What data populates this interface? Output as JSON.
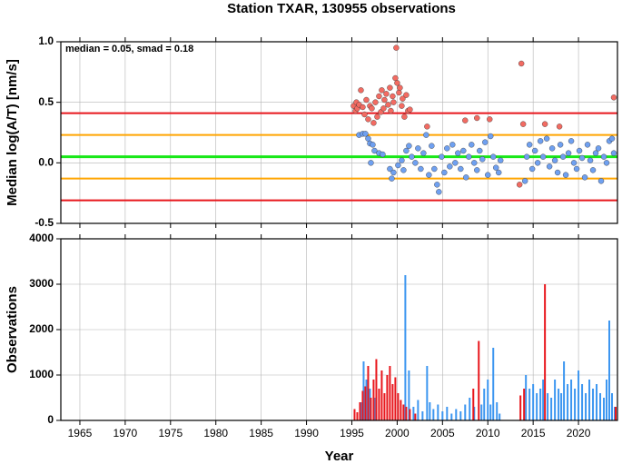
{
  "chart_data": [
    {
      "type": "scatter",
      "title": "Station TXAR, 130955 observations",
      "ylabel": "Median log(A/T) [nm/s]",
      "annotation": "median = 0.05, smad = 0.18",
      "xlim": [
        1962.9,
        2024.3
      ],
      "ylim": [
        -0.5,
        1.0
      ],
      "xticks": [
        1965,
        1970,
        1975,
        1980,
        1985,
        1990,
        1995,
        2000,
        2005,
        2010,
        2015,
        2020
      ],
      "yticks": [
        -0.5,
        {
          "value": 0,
          "label": "0.0"
        },
        0.5,
        {
          "value": 1,
          "label": "1.0"
        }
      ],
      "grid": true,
      "hlines": [
        {
          "value": 0.41,
          "color": "#e8161c"
        },
        {
          "value": -0.31,
          "color": "#e8161c"
        },
        {
          "value": 0.23,
          "color": "#ffa500"
        },
        {
          "value": -0.13,
          "color": "#ffa500"
        },
        {
          "value": 0.05,
          "color": "#18e818"
        }
      ],
      "series": [
        {
          "color": "#f26b62",
          "x": [
            1995.2,
            1995.4,
            1995.5,
            1995.6,
            1995.8,
            1996.0,
            1996.2,
            1996.4,
            1996.6,
            1996.8,
            1997.0,
            1997.2,
            1997.4,
            1997.6,
            1997.8,
            1998.0,
            1998.2,
            1998.3,
            1998.5,
            1998.6,
            1998.8,
            1999.0,
            1999.2,
            1999.3,
            1999.5,
            1999.6,
            1999.8,
            1999.9,
            2000.0,
            2000.2,
            2000.3,
            2000.5,
            2000.6,
            2000.8,
            2001.0,
            2001.2,
            2001.4,
            2003.3,
            2007.5,
            2008.8,
            2010.2,
            2013.5,
            2013.7,
            2013.9,
            2016.3,
            2017.9,
            2023.9
          ],
          "values": [
            0.47,
            0.43,
            0.5,
            0.45,
            0.48,
            0.6,
            0.46,
            0.4,
            0.52,
            0.36,
            0.47,
            0.45,
            0.33,
            0.5,
            0.38,
            0.55,
            0.42,
            0.6,
            0.45,
            0.52,
            0.57,
            0.48,
            0.62,
            0.43,
            0.55,
            0.5,
            0.7,
            0.95,
            0.66,
            0.58,
            0.62,
            0.47,
            0.53,
            0.38,
            0.56,
            0.43,
            0.44,
            0.3,
            0.35,
            0.37,
            0.36,
            -0.18,
            0.82,
            0.32,
            0.32,
            0.3,
            0.54
          ]
        },
        {
          "color": "#6fa0f0",
          "x": [
            1995.8,
            1996.2,
            1996.5,
            1996.8,
            1997.0,
            1997.3,
            1997.5,
            1997.1,
            1998.0,
            1998.4,
            1999.2,
            1999.4,
            1999.6,
            2000.1,
            2000.5,
            2000.7,
            2001.0,
            2001.3,
            2001.6,
            2002.0,
            2002.3,
            2002.6,
            2002.9,
            2003.2,
            2003.5,
            2003.8,
            2004.1,
            2004.4,
            2004.6,
            2004.9,
            2005.2,
            2005.5,
            2005.8,
            2006.1,
            2006.4,
            2006.7,
            2007.0,
            2007.3,
            2007.6,
            2007.9,
            2008.2,
            2008.5,
            2008.8,
            2009.1,
            2009.4,
            2009.7,
            2010.0,
            2010.3,
            2010.6,
            2010.9,
            2011.2,
            2011.4,
            2014.1,
            2014.3,
            2014.6,
            2014.9,
            2015.2,
            2015.5,
            2015.8,
            2016.1,
            2016.5,
            2016.8,
            2017.1,
            2017.4,
            2017.7,
            2018.0,
            2018.3,
            2018.6,
            2018.9,
            2019.2,
            2019.5,
            2019.8,
            2020.1,
            2020.4,
            2020.7,
            2021.0,
            2021.3,
            2021.6,
            2021.9,
            2022.2,
            2022.5,
            2022.8,
            2023.1,
            2023.4,
            2023.7,
            2023.9
          ],
          "values": [
            0.23,
            0.24,
            0.24,
            0.2,
            0.16,
            0.15,
            0.1,
            0.0,
            0.08,
            0.07,
            -0.05,
            -0.13,
            -0.08,
            -0.02,
            0.02,
            -0.06,
            0.1,
            0.14,
            0.05,
            0.0,
            0.12,
            -0.05,
            0.08,
            0.23,
            -0.1,
            0.14,
            -0.05,
            -0.18,
            -0.24,
            0.05,
            -0.08,
            0.12,
            -0.03,
            0.15,
            0.0,
            0.08,
            -0.05,
            0.1,
            -0.12,
            0.05,
            0.15,
            0.0,
            -0.06,
            0.1,
            0.03,
            0.17,
            -0.1,
            0.22,
            0.05,
            -0.04,
            -0.08,
            0.02,
            -0.15,
            0.05,
            0.15,
            -0.05,
            0.1,
            0.0,
            0.18,
            0.05,
            0.2,
            -0.03,
            0.12,
            0.02,
            -0.08,
            0.15,
            0.05,
            -0.1,
            0.08,
            0.18,
            0.0,
            -0.05,
            0.1,
            0.04,
            -0.12,
            0.15,
            0.02,
            -0.06,
            0.08,
            0.12,
            -0.15,
            0.05,
            0.0,
            0.18,
            0.2,
            0.08
          ]
        }
      ]
    },
    {
      "type": "bar",
      "xlabel": "Year",
      "ylabel": "Observations",
      "xlim": [
        1962.9,
        2024.3
      ],
      "ylim": [
        0,
        4000
      ],
      "xticks": [
        1965,
        1970,
        1975,
        1980,
        1985,
        1990,
        1995,
        2000,
        2005,
        2010,
        2015,
        2020
      ],
      "yticks": [
        0,
        1000,
        2000,
        3000,
        4000
      ],
      "grid": true,
      "series": [
        {
          "color": "#3c96f0",
          "x": [
            1996.0,
            1996.3,
            1996.6,
            1997.0,
            1997.5,
            2000.9,
            2001.3,
            2001.8,
            2002.3,
            2002.8,
            2003.3,
            2003.6,
            2004.0,
            2004.5,
            2005.0,
            2005.5,
            2006.0,
            2006.5,
            2007.0,
            2007.5,
            2008.0,
            2008.5,
            2009.3,
            2009.6,
            2010.0,
            2010.3,
            2010.6,
            2011.0,
            2011.3,
            2014.2,
            2014.6,
            2015.0,
            2015.4,
            2015.8,
            2016.1,
            2016.6,
            2017.0,
            2017.4,
            2017.8,
            2018.1,
            2018.4,
            2018.8,
            2019.2,
            2019.6,
            2020.0,
            2020.4,
            2020.8,
            2021.2,
            2021.6,
            2022.0,
            2022.4,
            2022.8,
            2023.1,
            2023.4,
            2023.7,
            2024.0
          ],
          "values": [
            400,
            1300,
            900,
            700,
            500,
            3200,
            1100,
            300,
            450,
            200,
            1200,
            400,
            250,
            350,
            200,
            300,
            150,
            250,
            200,
            350,
            500,
            300,
            350,
            700,
            900,
            350,
            1600,
            400,
            150,
            1000,
            700,
            800,
            600,
            700,
            900,
            600,
            500,
            900,
            700,
            600,
            1300,
            800,
            900,
            700,
            1100,
            800,
            600,
            900,
            700,
            800,
            600,
            500,
            900,
            2200,
            600,
            300
          ]
        },
        {
          "color": "#e8161c",
          "x": [
            1995.3,
            1995.6,
            1995.9,
            1996.2,
            1996.5,
            1996.8,
            1997.1,
            1997.4,
            1997.7,
            1998.0,
            1998.3,
            1998.6,
            1998.9,
            1999.2,
            1999.5,
            1999.8,
            2000.1,
            2000.4,
            2000.7,
            2001.0,
            2001.4,
            2002.0,
            2008.4,
            2009.0,
            2013.6,
            2014.0,
            2016.3,
            2024.1
          ],
          "values": [
            250,
            180,
            400,
            650,
            750,
            1200,
            500,
            900,
            1350,
            700,
            1100,
            600,
            1000,
            1200,
            800,
            950,
            600,
            450,
            350,
            300,
            250,
            150,
            700,
            1750,
            550,
            700,
            3000,
            300
          ]
        }
      ]
    }
  ]
}
